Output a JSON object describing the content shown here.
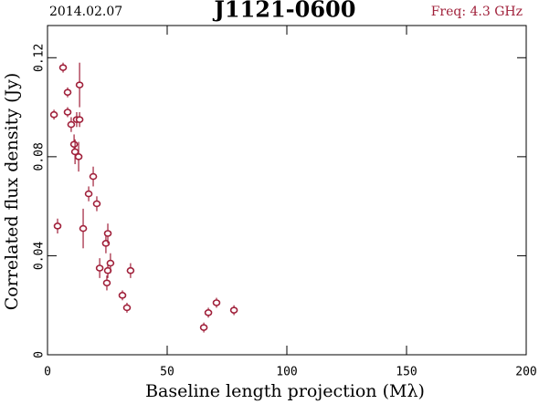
{
  "chart_data": {
    "type": "scatter",
    "date": "2014.02.07",
    "title": "J1121-0600",
    "frequency": "Freq: 4.3 GHz",
    "xlabel": "Baseline length projection (Mλ)",
    "ylabel": "Correlated flux density (Jy)",
    "xlim": [
      0,
      200
    ],
    "ylim": [
      0,
      0.133
    ],
    "xticks": [
      0,
      50,
      100,
      150,
      200
    ],
    "yticks": [
      0,
      0.04,
      0.08,
      0.12
    ],
    "series": [
      {
        "color": "#a0203a",
        "x": [
          2.7,
          4.2,
          6.5,
          8.4,
          8.4,
          9.9,
          11.1,
          11.5,
          12.2,
          13.4,
          13.4,
          13.0,
          14.9,
          17.2,
          19.1,
          20.6,
          21.8,
          24.4,
          25.2,
          25.2,
          24.8,
          26.3,
          31.3,
          33.2,
          34.7,
          65.3,
          67.2,
          70.6,
          77.9
        ],
        "y": [
          0.097,
          0.052,
          0.116,
          0.106,
          0.098,
          0.093,
          0.085,
          0.082,
          0.095,
          0.095,
          0.109,
          0.08,
          0.051,
          0.065,
          0.072,
          0.061,
          0.035,
          0.045,
          0.049,
          0.034,
          0.029,
          0.037,
          0.024,
          0.019,
          0.034,
          0.011,
          0.017,
          0.021,
          0.018
        ],
        "errors": [
          0.002,
          0.003,
          0.002,
          0.002,
          0.002,
          0.003,
          0.004,
          0.005,
          0.003,
          0.003,
          0.009,
          0.006,
          0.008,
          0.003,
          0.004,
          0.003,
          0.004,
          0.004,
          0.004,
          0.003,
          0.003,
          0.004,
          0.002,
          0.002,
          0.003,
          0.002,
          0.002,
          0.002,
          0.002
        ]
      }
    ]
  }
}
